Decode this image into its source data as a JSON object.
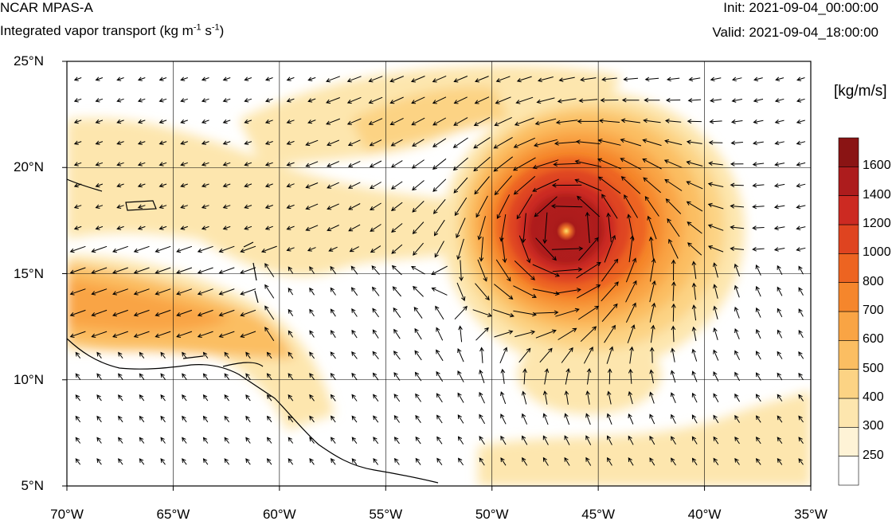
{
  "title": {
    "model": "NCAR MPAS-A",
    "variable": "Integrated vapor transport (kg m",
    "unit_exp1": "-1",
    "unit_mid": " s",
    "unit_exp2": "-1",
    "unit_close": ")",
    "init": "Init: 2021-09-04_00:00:00",
    "valid": "Valid: 2021-09-04_18:00:00"
  },
  "map": {
    "lon_range": [
      -70,
      -35
    ],
    "lat_range": [
      5,
      25
    ],
    "lat_ticks": [
      25,
      20,
      15,
      10,
      5
    ],
    "lat_tick_labels": [
      "25°N",
      "20°N",
      "15°N",
      "10°N",
      "5°N"
    ],
    "lon_ticks": [
      -70,
      -65,
      -60,
      -55,
      -50,
      -45,
      -40,
      -35
    ],
    "lon_tick_labels": [
      "70°W",
      "65°W",
      "60°W",
      "55°W",
      "50°W",
      "45°W",
      "40°W",
      "35°W"
    ],
    "grid": true,
    "cyclone_center": {
      "lon": -46.5,
      "lat": 17.1
    }
  },
  "colorbar": {
    "unit_label": "[kg/m/s]",
    "levels": [
      250,
      300,
      400,
      500,
      600,
      700,
      800,
      1000,
      1200,
      1400,
      1600
    ],
    "colors": [
      "#ffffff",
      "#fef3d6",
      "#fde6ae",
      "#fcd384",
      "#fbbe62",
      "#f9a444",
      "#f5862c",
      "#ed6421",
      "#df4420",
      "#cc2a22",
      "#ad1c1d",
      "#8a1414"
    ]
  }
}
